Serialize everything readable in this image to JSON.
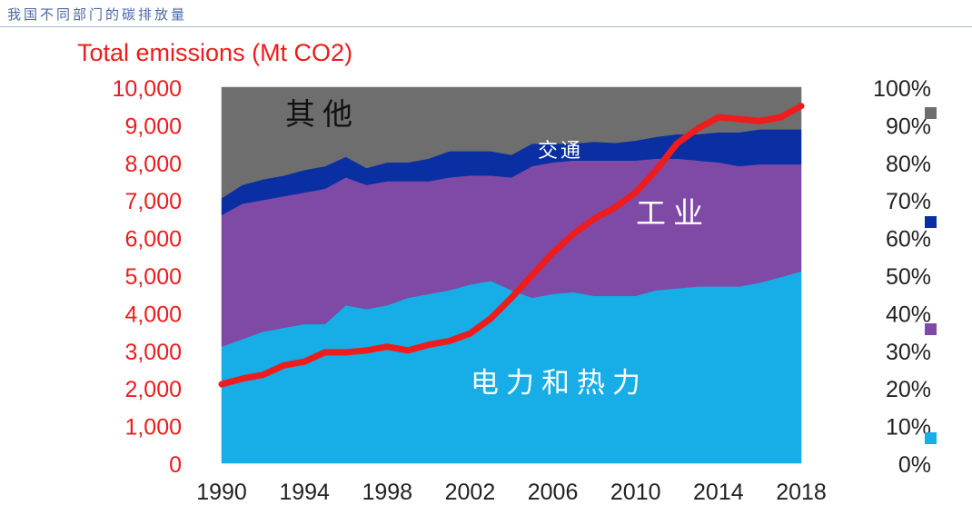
{
  "caption": "我国不同部门的碳排放量",
  "chart_data": {
    "type": "area",
    "title": "Total emissions (Mt CO2)",
    "x": [
      1990,
      1991,
      1992,
      1993,
      1994,
      1995,
      1996,
      1997,
      1998,
      1999,
      2000,
      2001,
      2002,
      2003,
      2004,
      2005,
      2006,
      2007,
      2008,
      2009,
      2010,
      2011,
      2012,
      2013,
      2014,
      2015,
      2016,
      2017,
      2018
    ],
    "x_ticks": [
      "1990",
      "1994",
      "1998",
      "2002",
      "2006",
      "2010",
      "2014",
      "2018"
    ],
    "left_axis": {
      "ylim": [
        0,
        10000
      ],
      "ticks": [
        "0",
        "1,000",
        "2,000",
        "3,000",
        "4,000",
        "5,000",
        "6,000",
        "7,000",
        "8,000",
        "9,000",
        "10,000"
      ]
    },
    "right_axis": {
      "ylim": [
        0,
        100
      ],
      "ticks": [
        "0%",
        "10%",
        "20%",
        "30%",
        "40%",
        "50%",
        "60%",
        "70%",
        "80%",
        "90%",
        "100%"
      ]
    },
    "stacked_share_series": [
      {
        "name": "电力和热力",
        "color": "#17ade6",
        "values": [
          31,
          33,
          35,
          36,
          37,
          37,
          42,
          41,
          42,
          44,
          45,
          46,
          47.5,
          48.5,
          46,
          44,
          45,
          45.5,
          44.5,
          44.5,
          44.5,
          46,
          46.5,
          47,
          47,
          47,
          48,
          49.5,
          51
        ]
      },
      {
        "name": "工业",
        "color": "#7e4aa6",
        "values": [
          35,
          36,
          35,
          35,
          35,
          36,
          34,
          33,
          33,
          31,
          30,
          30,
          29,
          28,
          30,
          35,
          35,
          35,
          36,
          36,
          36,
          35,
          34.5,
          33.5,
          33,
          32,
          31.5,
          30,
          28.5
        ]
      },
      {
        "name": "交通",
        "color": "#0a2fa3",
        "values": [
          4.5,
          5,
          5.5,
          5.5,
          6,
          6,
          5.5,
          4.5,
          5,
          5,
          6,
          7,
          6.5,
          6.5,
          6,
          6,
          5,
          4.5,
          5,
          4.7,
          5.3,
          5.8,
          6.5,
          7,
          8,
          9,
          9.3,
          9.3,
          9.3
        ]
      },
      {
        "name": "其他",
        "color": "#6e6e6e",
        "values": [
          29.5,
          26,
          24.5,
          23.5,
          22,
          21,
          18.5,
          21.5,
          20,
          20,
          19,
          17,
          17,
          17,
          18,
          15,
          15,
          15,
          14.5,
          14.8,
          14.2,
          13.2,
          12.5,
          12.5,
          12,
          12,
          11.2,
          11.2,
          11.2
        ]
      }
    ],
    "line_series": {
      "name": "Total emissions (Mt CO2)",
      "color": "#ee1c1c",
      "values": [
        2100,
        2250,
        2350,
        2600,
        2700,
        2950,
        2950,
        3000,
        3100,
        3000,
        3150,
        3250,
        3450,
        3850,
        4400,
        5000,
        5600,
        6100,
        6500,
        6800,
        7200,
        7800,
        8500,
        8900,
        9200,
        9150,
        9100,
        9200,
        9500
      ]
    },
    "area_labels": [
      "其他",
      "交通",
      "工业",
      "电力和热力"
    ],
    "legend_position": "right"
  }
}
